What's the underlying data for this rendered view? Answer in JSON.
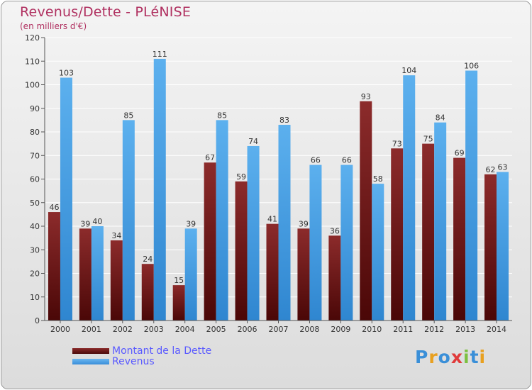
{
  "chart_data": {
    "type": "bar",
    "title": "Revenus/Dette - PLéNISE",
    "subtitle": "(en milliers d'€)",
    "categories": [
      "2000",
      "2001",
      "2002",
      "2003",
      "2004",
      "2005",
      "2006",
      "2007",
      "2008",
      "2009",
      "2010",
      "2011",
      "2012",
      "2013",
      "2014"
    ],
    "series": [
      {
        "name": "Montant de la Dette",
        "color": "#7a1f1f",
        "values": [
          46,
          39,
          34,
          24,
          15,
          67,
          59,
          41,
          39,
          36,
          93,
          73,
          75,
          69,
          62
        ]
      },
      {
        "name": "Revenus",
        "color": "#4ea6e6",
        "values": [
          103,
          40,
          85,
          111,
          39,
          85,
          74,
          83,
          66,
          66,
          58,
          104,
          84,
          106,
          63
        ]
      }
    ],
    "ylim": [
      0,
      120
    ],
    "yticks": [
      0,
      10,
      20,
      30,
      40,
      50,
      60,
      70,
      80,
      90,
      100,
      110,
      120
    ],
    "grid": true,
    "legend_position": "bottom-left"
  },
  "logo": {
    "text": "Proxiti"
  }
}
